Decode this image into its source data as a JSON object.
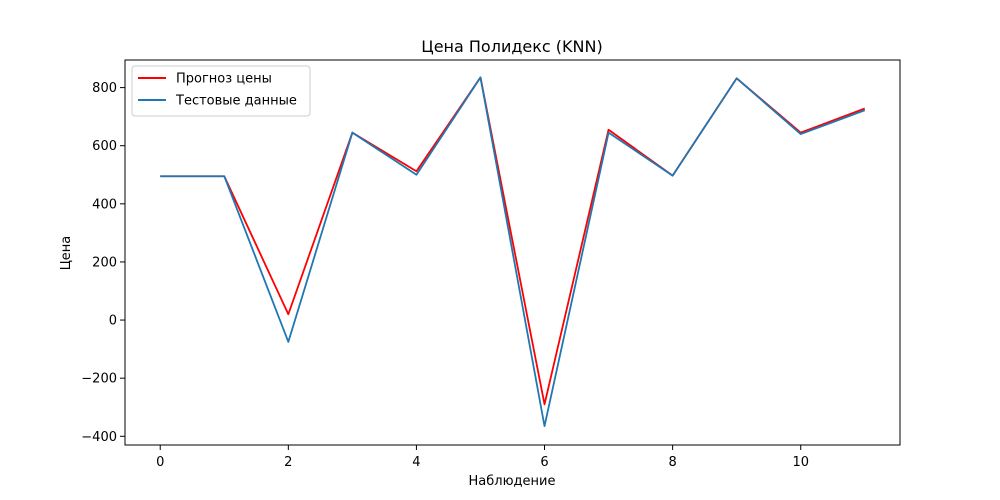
{
  "chart_data": {
    "type": "line",
    "title": "Цена Полидекс (KNN)",
    "xlabel": "Наблюдение",
    "ylabel": "Цена",
    "x": [
      0,
      1,
      2,
      3,
      4,
      5,
      6,
      7,
      8,
      9,
      10,
      11
    ],
    "xlim": [
      -0.55,
      11.55
    ],
    "ylim": [
      -430,
      895
    ],
    "xticks": [
      0,
      2,
      4,
      6,
      8,
      10
    ],
    "yticks": [
      -400,
      -200,
      0,
      200,
      400,
      600,
      800
    ],
    "xtick_labels": [
      "0",
      "2",
      "4",
      "6",
      "8",
      "10"
    ],
    "ytick_labels": [
      "−400",
      "−200",
      "0",
      "200",
      "400",
      "600",
      "800"
    ],
    "legend_position": "top-left",
    "grid": false,
    "series": [
      {
        "name": "Прогноз цены",
        "color": "#ff0000",
        "values": [
          495,
          495,
          20,
          645,
          512,
          835,
          -290,
          655,
          497,
          832,
          645,
          728
        ]
      },
      {
        "name": "Тестовые данные",
        "color": "#1f77b4",
        "values": [
          495,
          495,
          -75,
          645,
          500,
          835,
          -365,
          645,
          497,
          832,
          640,
          722
        ]
      }
    ]
  }
}
